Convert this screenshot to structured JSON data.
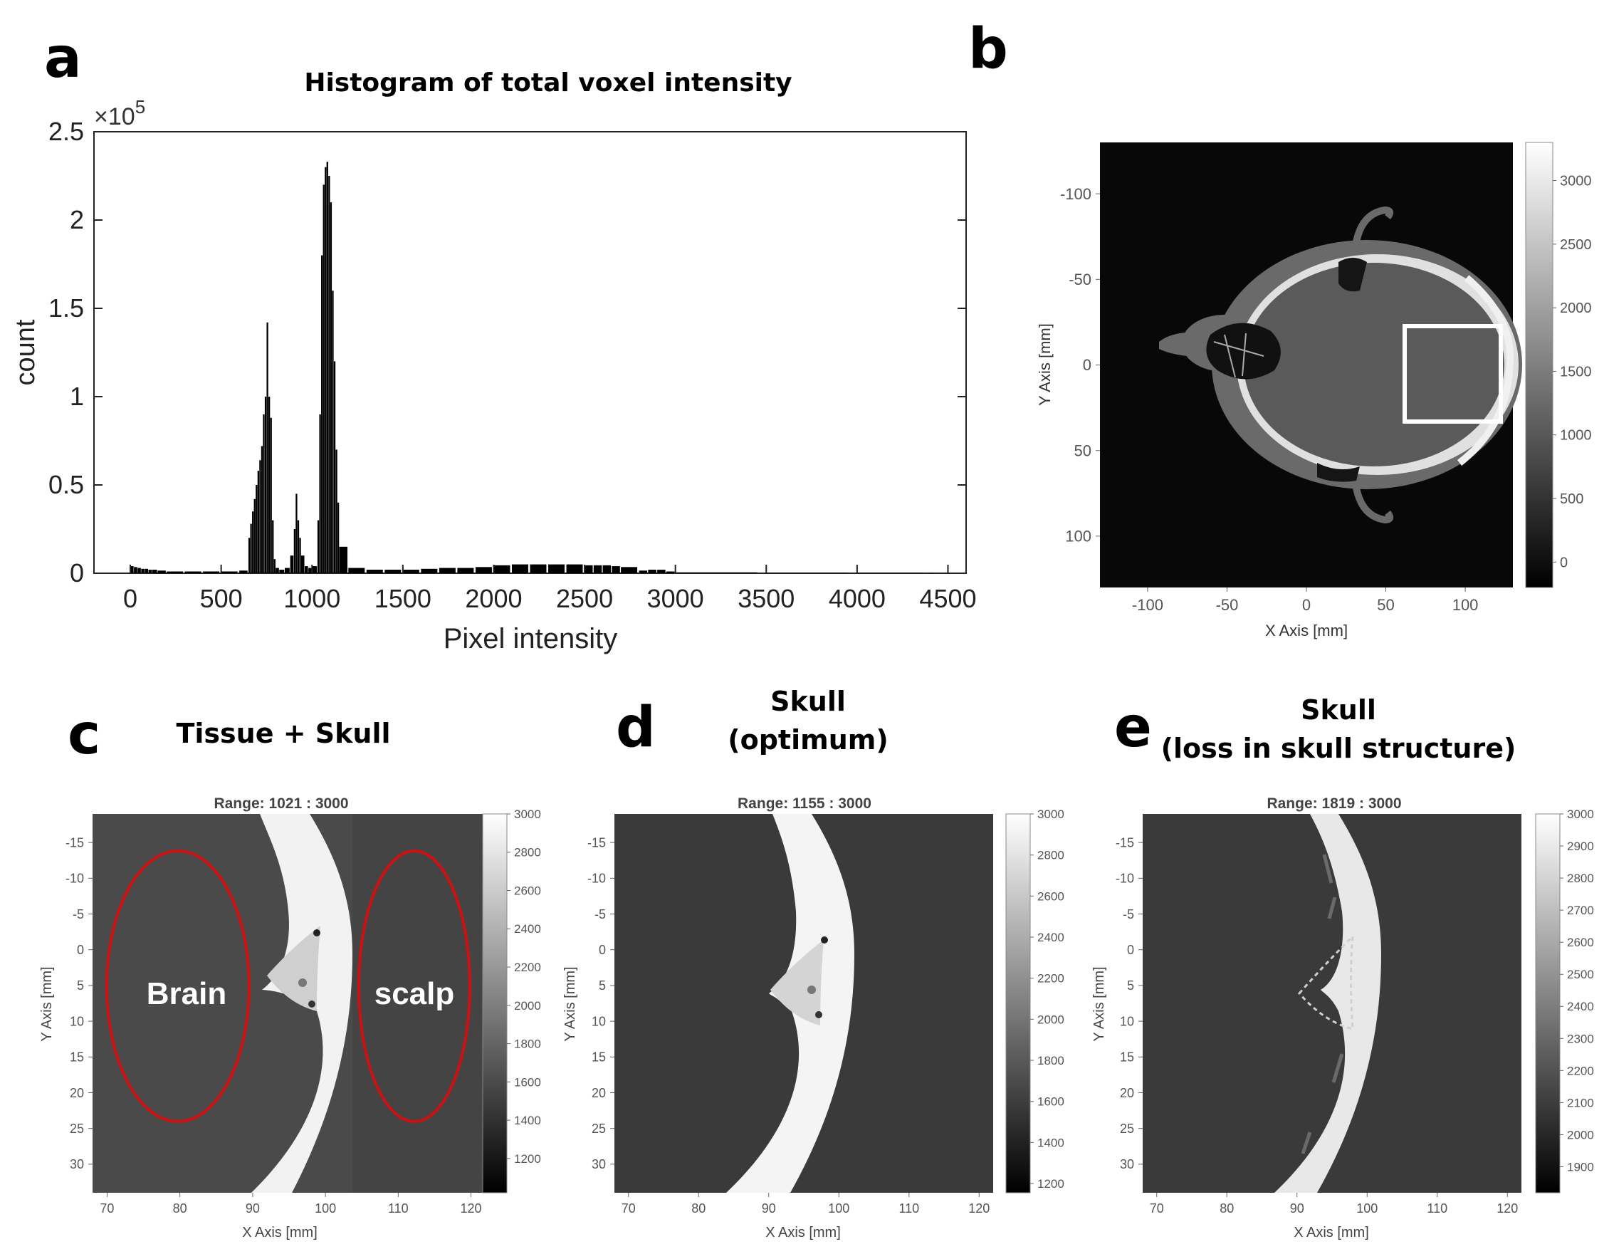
{
  "panels": {
    "a": {
      "letter": "a",
      "title": "Histogram of total voxel intensity",
      "exponent_base": "×10",
      "exponent_power": "5",
      "xlabel": "Pixel intensity",
      "ylabel": "count"
    },
    "b": {
      "letter": "b",
      "xlabel": "X Axis [mm]",
      "ylabel": "Y Axis [mm]"
    },
    "c": {
      "letter": "c",
      "title_line1": "Tissue + Skull",
      "range_label": "Range: 1021 : 3000",
      "xlabel": "X Axis [mm]",
      "ylabel": "Y Axis [mm]",
      "annotation_brain": "Brain",
      "annotation_scalp": "scalp"
    },
    "d": {
      "letter": "d",
      "title_line1": "Skull",
      "title_line2": "(optimum)",
      "range_label": "Range: 1155 : 3000",
      "xlabel": "X Axis [mm]",
      "ylabel": "Y Axis [mm]"
    },
    "e": {
      "letter": "e",
      "title_line1": "Skull",
      "title_line2": "(loss in skull structure)",
      "range_label": "Range: 1819 : 3000",
      "xlabel": "X Axis [mm]",
      "ylabel": "Y Axis [mm]"
    }
  },
  "colors": {
    "annotation_ellipse": "#d01010",
    "roi_box": "#ffffff",
    "dark_bg": "#3a3a3a",
    "black_bg": "#080808"
  },
  "chart_data": [
    {
      "id": "a",
      "type": "bar",
      "title": "Histogram of total voxel intensity",
      "xlabel": "Pixel intensity",
      "ylabel": "count",
      "xlim": [
        -200,
        4600
      ],
      "ylim": [
        0,
        2.5
      ],
      "y_scale_note": "×10^5",
      "xticks": [
        0,
        500,
        1000,
        1500,
        2000,
        2500,
        3000,
        3500,
        4000,
        4500
      ],
      "yticks": [
        0,
        0.5,
        1,
        1.5,
        2,
        2.5
      ],
      "x": [
        0,
        20,
        40,
        60,
        80,
        100,
        120,
        150,
        200,
        300,
        400,
        500,
        600,
        650,
        660,
        670,
        680,
        690,
        700,
        710,
        720,
        730,
        740,
        750,
        760,
        770,
        780,
        790,
        800,
        820,
        850,
        880,
        900,
        910,
        920,
        930,
        940,
        960,
        980,
        1000,
        1030,
        1040,
        1050,
        1060,
        1070,
        1080,
        1090,
        1100,
        1110,
        1120,
        1130,
        1140,
        1150,
        1200,
        1300,
        1400,
        1500,
        1600,
        1700,
        1800,
        1900,
        2000,
        2100,
        2200,
        2300,
        2400,
        2500,
        2550,
        2600,
        2650,
        2700,
        2800,
        2850,
        2900,
        2950,
        3000,
        3500,
        4000,
        4400
      ],
      "values": [
        0.04,
        0.035,
        0.03,
        0.025,
        0.025,
        0.02,
        0.02,
        0.015,
        0.01,
        0.01,
        0.01,
        0.01,
        0.015,
        0.2,
        0.28,
        0.35,
        0.42,
        0.5,
        0.58,
        0.64,
        0.72,
        0.9,
        1.0,
        1.42,
        1.0,
        0.88,
        0.3,
        0.08,
        0.03,
        0.02,
        0.03,
        0.1,
        0.25,
        0.45,
        0.3,
        0.2,
        0.1,
        0.04,
        0.03,
        0.04,
        0.3,
        0.9,
        1.8,
        2.2,
        2.3,
        2.33,
        2.25,
        2.1,
        1.6,
        1.2,
        0.7,
        0.4,
        0.15,
        0.03,
        0.02,
        0.02,
        0.02,
        0.025,
        0.03,
        0.03,
        0.035,
        0.045,
        0.05,
        0.05,
        0.05,
        0.05,
        0.045,
        0.045,
        0.045,
        0.04,
        0.035,
        0.015,
        0.02,
        0.02,
        0.01,
        0.005,
        0.003,
        0.002,
        0.001
      ]
    },
    {
      "id": "b",
      "type": "heatmap",
      "xlabel": "X Axis [mm]",
      "ylabel": "Y Axis [mm]",
      "xlim": [
        -130,
        130
      ],
      "ylim": [
        -130,
        130
      ],
      "xticks": [
        -100,
        -50,
        0,
        50,
        100
      ],
      "yticks": [
        -100,
        -50,
        0,
        50,
        100
      ],
      "colorbar_ticks": [
        0,
        500,
        1000,
        1500,
        2000,
        2500,
        3000
      ],
      "colorbar_range": [
        -200,
        3300
      ],
      "roi_box_mm": {
        "x": [
          63,
          126
        ],
        "y": [
          -23,
          35
        ]
      }
    },
    {
      "id": "c",
      "type": "heatmap",
      "title": "Range: 1021 : 3000",
      "xlabel": "X Axis [mm]",
      "ylabel": "Y Axis [mm]",
      "xlim": [
        68,
        122
      ],
      "ylim": [
        -19,
        34
      ],
      "xticks": [
        70,
        80,
        90,
        100,
        110,
        120
      ],
      "yticks": [
        -15,
        -10,
        -5,
        0,
        5,
        10,
        15,
        20,
        25,
        30
      ],
      "colorbar_ticks": [
        1200,
        1400,
        1600,
        1800,
        2000,
        2200,
        2400,
        2600,
        2800,
        3000
      ],
      "colorbar_range": [
        1021,
        3000
      ]
    },
    {
      "id": "d",
      "type": "heatmap",
      "title": "Range: 1155 : 3000",
      "xlabel": "X Axis [mm]",
      "ylabel": "Y Axis [mm]",
      "xlim": [
        68,
        122
      ],
      "ylim": [
        -19,
        34
      ],
      "xticks": [
        70,
        80,
        90,
        100,
        110,
        120
      ],
      "yticks": [
        -15,
        -10,
        -5,
        0,
        5,
        10,
        15,
        20,
        25,
        30
      ],
      "colorbar_ticks": [
        1200,
        1400,
        1600,
        1800,
        2000,
        2200,
        2400,
        2600,
        2800,
        3000
      ],
      "colorbar_range": [
        1155,
        3000
      ]
    },
    {
      "id": "e",
      "type": "heatmap",
      "title": "Range: 1819 : 3000",
      "xlabel": "X Axis [mm]",
      "ylabel": "Y Axis [mm]",
      "xlim": [
        68,
        122
      ],
      "ylim": [
        -19,
        34
      ],
      "xticks": [
        70,
        80,
        90,
        100,
        110,
        120
      ],
      "yticks": [
        -15,
        -10,
        -5,
        0,
        5,
        10,
        15,
        20,
        25,
        30
      ],
      "colorbar_ticks": [
        1900,
        2000,
        2100,
        2200,
        2300,
        2400,
        2500,
        2600,
        2700,
        2800,
        2900,
        3000
      ],
      "colorbar_range": [
        1819,
        3000
      ]
    }
  ]
}
